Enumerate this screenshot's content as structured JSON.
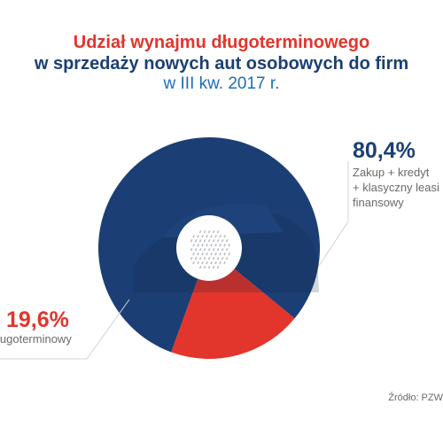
{
  "title": {
    "line1": "Udział wynajmu długoterminowego",
    "line2": "w sprzedaży nowych aut osobowych do firm",
    "line3": "w III kw. 2017 r."
  },
  "source": "Źródło: PZW",
  "colors": {
    "blue": "#1b3f74",
    "red": "#e2352c",
    "accent": "#1b6fb8"
  },
  "chart_data": {
    "type": "pie",
    "title": "Udział wynajmu długoterminowego w sprzedaży nowych aut osobowych do firm w III kw. 2017 r.",
    "slices": [
      {
        "label_lines": [
          "Zakup + kredyt",
          "+ klasyczny leasi",
          "finansowy"
        ],
        "value": 80.4,
        "value_label": "80,4%",
        "color": "#1b3f74"
      },
      {
        "label_lines": [
          "ługoterminowy"
        ],
        "value": 19.6,
        "value_label": "19,6%",
        "color": "#e2352c"
      }
    ]
  }
}
